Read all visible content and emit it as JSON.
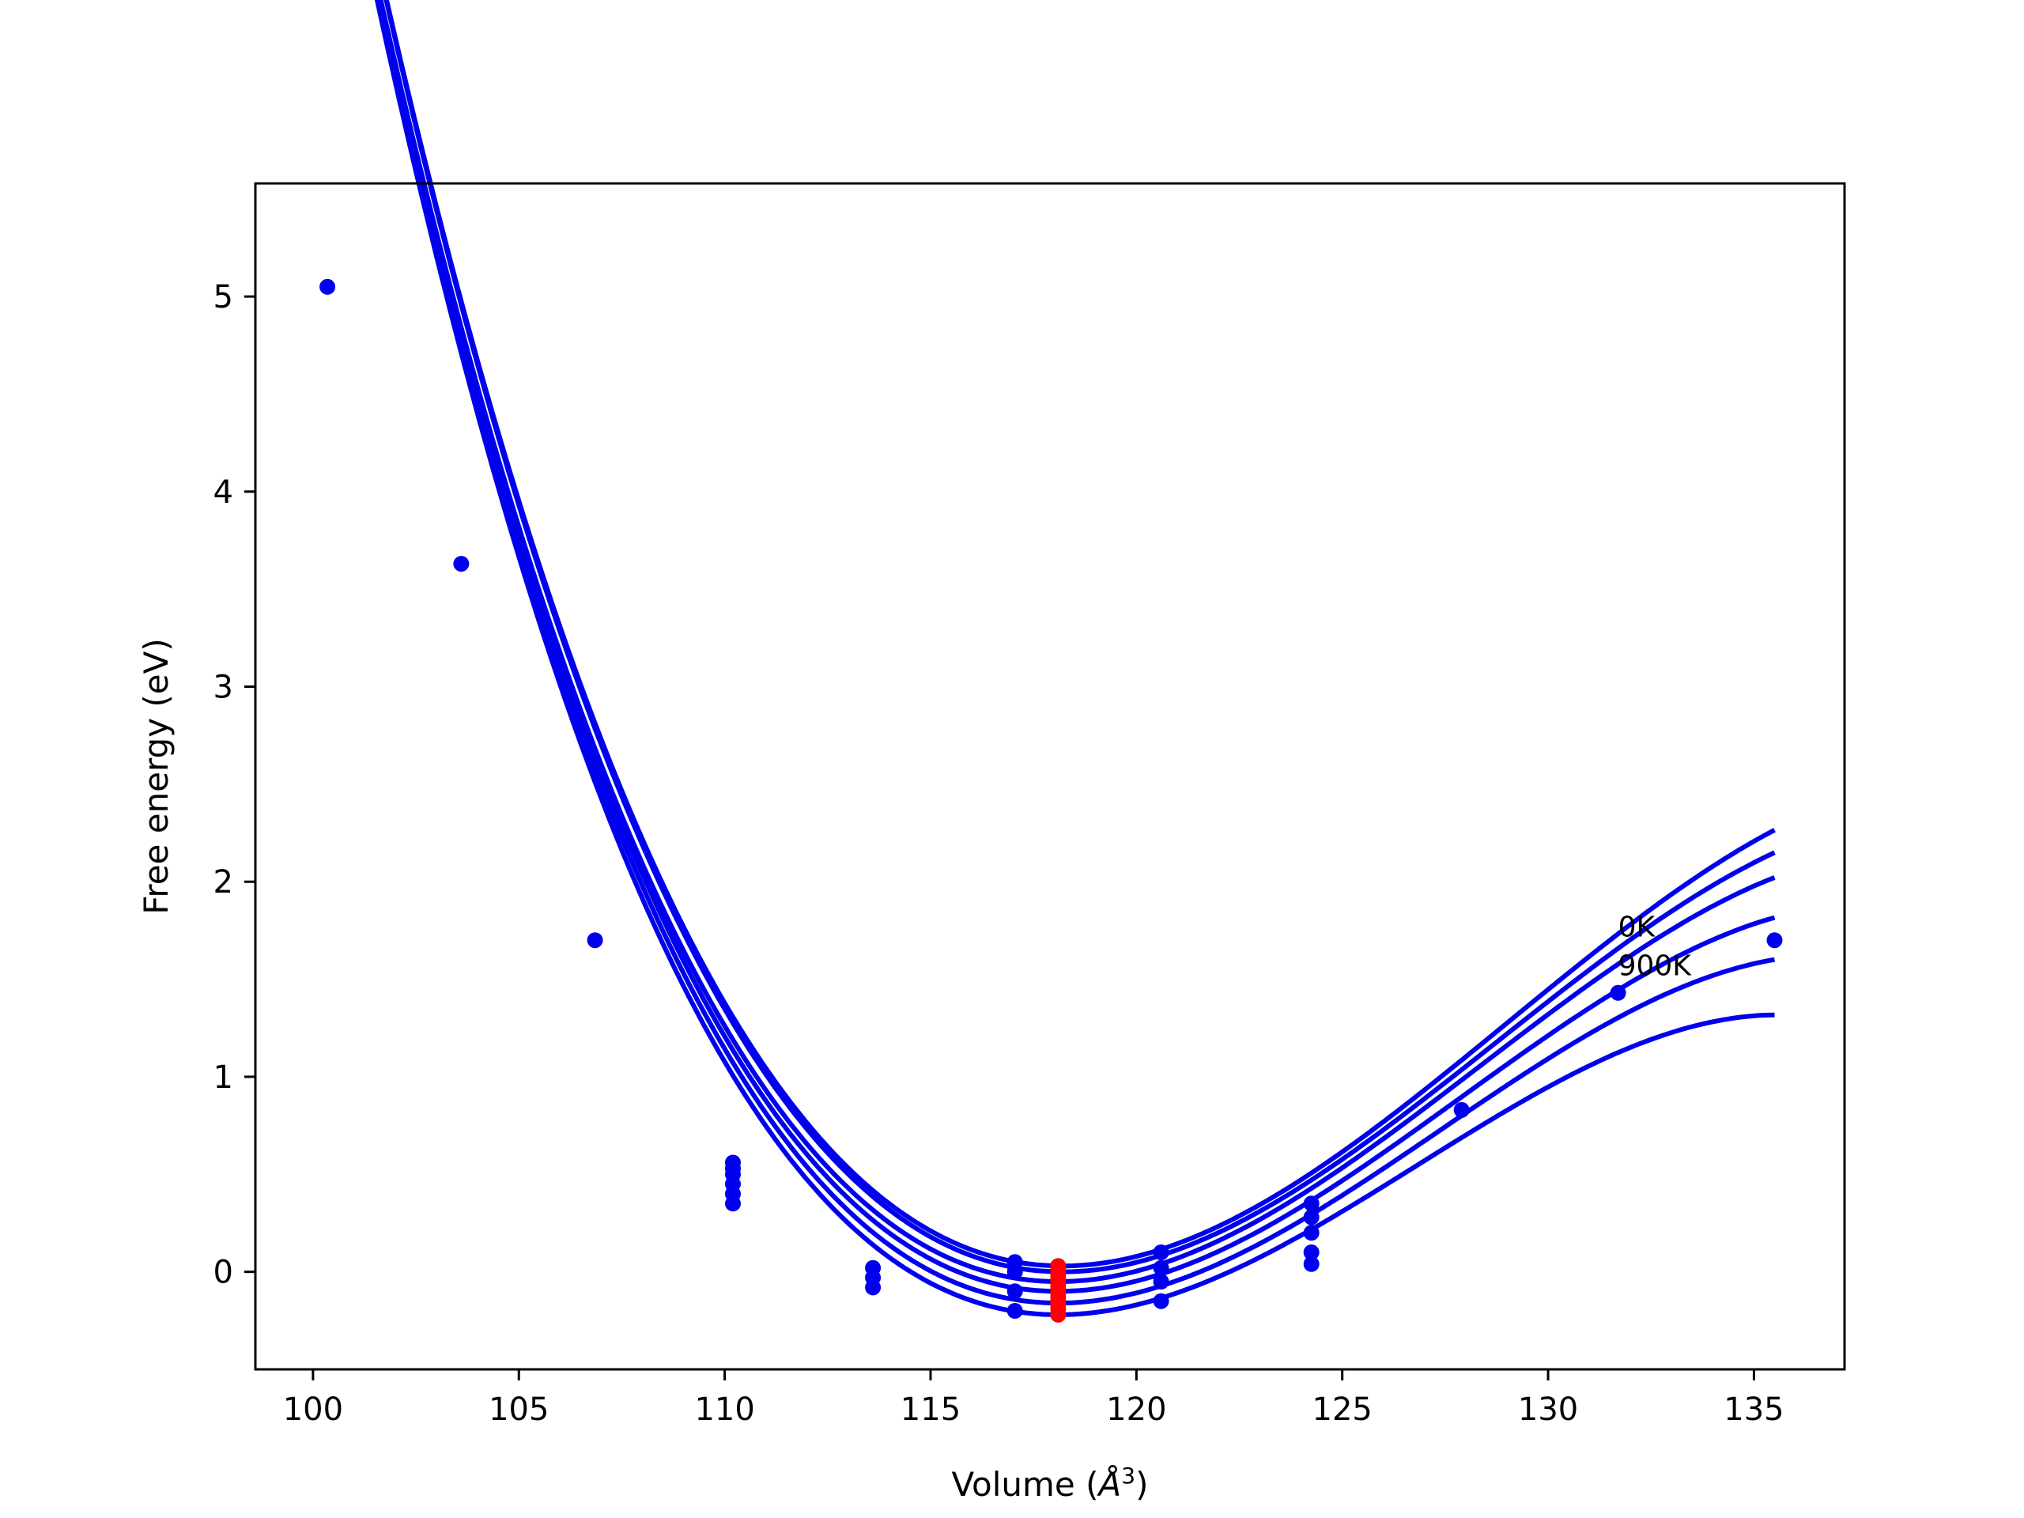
{
  "chart_data": {
    "type": "scatter",
    "title": "",
    "xlabel": "Volume ($Å^3$)",
    "xlabel_text": "Volume (",
    "xlabel_unit": "Å",
    "xlabel_exp": "3",
    "xlabel_close": ")",
    "ylabel": "Free energy (eV)",
    "xlim": [
      98.6,
      137.2
    ],
    "ylim": [
      -0.5,
      5.58
    ],
    "xticks": [
      100,
      105,
      110,
      115,
      120,
      125,
      130,
      135
    ],
    "yticks": [
      0,
      1,
      2,
      3,
      4,
      5
    ],
    "grid": false,
    "legend": "none",
    "annotations": [
      "0K",
      "900K"
    ],
    "annotation_x": 131.7,
    "annotation_y": [
      1.72,
      1.52
    ],
    "colors": {
      "series": "#0000ee",
      "equilibrium": "#ff0000",
      "axes": "#000000"
    },
    "fit_range": [
      100.35,
      135.5
    ],
    "series": [
      {
        "color": "#0000ee",
        "v0": 118.2,
        "e0": 0.03,
        "a": 0.016,
        "p": 0.0137
      },
      {
        "color": "#0000ee",
        "v0": 118.2,
        "e0": 0.0,
        "a": 0.0159,
        "p": 0.014
      },
      {
        "color": "#0000ee",
        "v0": 118.1,
        "e0": -0.05,
        "a": 0.0158,
        "p": 0.0143
      },
      {
        "color": "#0000ee",
        "v0": 118.1,
        "e0": -0.1,
        "a": 0.0156,
        "p": 0.0148
      },
      {
        "color": "#0000ee",
        "v0": 118.1,
        "e0": -0.16,
        "a": 0.0154,
        "p": 0.0153
      },
      {
        "color": "#0000ee",
        "v0": 118.1,
        "e0": -0.22,
        "a": 0.0151,
        "p": 0.016
      }
    ],
    "points": {
      "x": [
        100.35,
        103.6,
        106.85,
        110.2,
        110.2,
        110.2,
        110.2,
        110.2,
        110.2,
        113.6,
        113.6,
        113.6,
        117.05,
        117.05,
        117.05,
        117.05,
        120.6,
        120.6,
        120.6,
        120.6,
        124.25,
        124.25,
        124.25,
        124.25,
        124.25,
        127.9,
        131.7,
        135.5
      ],
      "y": [
        5.05,
        3.63,
        1.7,
        0.56,
        0.5,
        0.45,
        0.4,
        0.35,
        0.53,
        0.02,
        -0.03,
        -0.08,
        0.05,
        0.0,
        -0.1,
        -0.2,
        0.1,
        0.02,
        -0.05,
        -0.15,
        0.35,
        0.28,
        0.2,
        0.1,
        0.04,
        0.83,
        1.43,
        1.7
      ]
    },
    "equilibrium_points": {
      "x": [
        118.1,
        118.1,
        118.1,
        118.1,
        118.1,
        118.1,
        118.1,
        118.1,
        118.1,
        118.1,
        118.1,
        118.1,
        118.1
      ],
      "y": [
        0.03,
        0.01,
        -0.01,
        -0.03,
        -0.05,
        -0.07,
        -0.09,
        -0.11,
        -0.13,
        -0.15,
        -0.17,
        -0.19,
        -0.22
      ]
    }
  }
}
